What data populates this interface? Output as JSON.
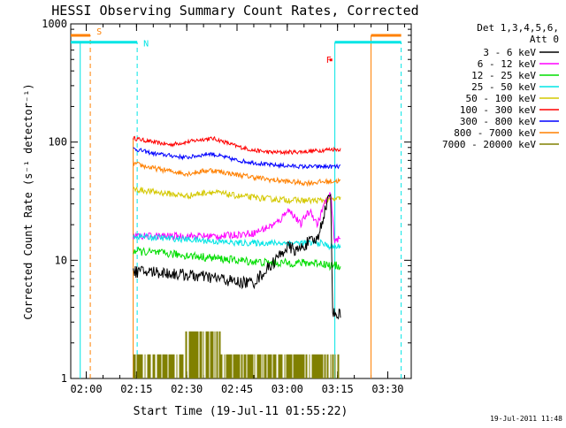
{
  "chart_data": {
    "type": "line",
    "title": "HESSI Observing Summary Count Rates, Corrected",
    "xlabel": "Start Time (19-Jul-11 01:55:22)",
    "ylabel": "Corrected Count Rate (s⁻¹ detector⁻¹)",
    "y_scale": "log",
    "ylim": [
      1,
      1000
    ],
    "xlim_minutes": [
      115.37,
      217.0
    ],
    "x_ticks": [
      {
        "label": "02:00",
        "min": 120
      },
      {
        "label": "02:15",
        "min": 135
      },
      {
        "label": "02:30",
        "min": 150
      },
      {
        "label": "02:45",
        "min": 165
      },
      {
        "label": "03:00",
        "min": 180
      },
      {
        "label": "03:15",
        "min": 195
      },
      {
        "label": "03:30",
        "min": 210
      }
    ],
    "y_ticks": [
      {
        "label": "1",
        "value": 1
      },
      {
        "label": "10",
        "value": 10
      },
      {
        "label": "100",
        "value": 100
      },
      {
        "label": "1000",
        "value": 1000
      }
    ],
    "legend": {
      "position": "right",
      "title_lines": [
        "Det 1,3,4,5,6,",
        "Att 0"
      ],
      "entries": [
        {
          "label": "3 - 6 keV",
          "color": "#000000"
        },
        {
          "label": "6 - 12 keV",
          "color": "#ff00ff"
        },
        {
          "label": "12 - 25 keV",
          "color": "#00dd00"
        },
        {
          "label": "25 - 50 keV",
          "color": "#00e5e5"
        },
        {
          "label": "50 - 100 keV",
          "color": "#d4c800"
        },
        {
          "label": "100 - 300 keV",
          "color": "#ff0000"
        },
        {
          "label": "300 - 800 keV",
          "color": "#0000ff"
        },
        {
          "label": "800 - 7000 keV",
          "color": "#ff8000"
        },
        {
          "label": "7000 - 20000 keV",
          "color": "#808000"
        }
      ]
    },
    "data_interval_minutes": [
      134.0,
      196.0
    ],
    "series": [
      {
        "name": "100 - 300 keV",
        "color": "#ff0000",
        "noise": 0.04,
        "x": [
          134,
          140,
          145,
          150,
          155,
          158,
          160,
          165,
          170,
          175,
          180,
          185,
          190,
          193,
          196
        ],
        "y": [
          108,
          100,
          95,
          100,
          106,
          107,
          103,
          92,
          85,
          82,
          82,
          83,
          85,
          87,
          87
        ]
      },
      {
        "name": "300 - 800 keV",
        "color": "#0000ff",
        "noise": 0.04,
        "x": [
          134,
          140,
          150,
          157,
          165,
          175,
          185,
          190,
          196
        ],
        "y": [
          88,
          80,
          74,
          80,
          70,
          64,
          62,
          62,
          62
        ]
      },
      {
        "name": "800 - 7000 keV",
        "color": "#ff8000",
        "noise": 0.05,
        "x": [
          134,
          140,
          150,
          157,
          165,
          175,
          185,
          190,
          196
        ],
        "y": [
          66,
          60,
          54,
          58,
          53,
          48,
          45,
          46,
          47
        ]
      },
      {
        "name": "50 - 100 keV",
        "color": "#d4c800",
        "noise": 0.06,
        "x": [
          134,
          140,
          150,
          157,
          165,
          175,
          185,
          190,
          196
        ],
        "y": [
          40,
          38,
          35,
          38,
          35,
          33,
          32,
          32,
          33
        ]
      },
      {
        "name": "6 - 12 keV",
        "color": "#ff00ff",
        "noise": 0.07,
        "x": [
          134,
          150,
          160,
          170,
          176,
          178,
          180,
          182,
          184,
          185.5,
          187,
          189,
          191,
          192,
          193,
          194,
          196
        ],
        "y": [
          16,
          16,
          16,
          17,
          20,
          22,
          27,
          24,
          20,
          24,
          26,
          20,
          30,
          33,
          36,
          15,
          15
        ]
      },
      {
        "name": "25 - 50 keV",
        "color": "#00e5e5",
        "noise": 0.06,
        "x": [
          134,
          150,
          165,
          175,
          185,
          190,
          193,
          196
        ],
        "y": [
          16,
          15,
          14,
          14,
          14,
          14,
          13,
          13
        ]
      },
      {
        "name": "12 - 25 keV",
        "color": "#00dd00",
        "noise": 0.08,
        "x": [
          134,
          150,
          165,
          175,
          185,
          190,
          193,
          196
        ],
        "y": [
          12,
          11,
          10,
          9.5,
          9.5,
          9.5,
          9,
          9
        ]
      },
      {
        "name": "3 - 6 keV",
        "color": "#000000",
        "noise": 0.12,
        "x": [
          134,
          140,
          150,
          160,
          165,
          170,
          175,
          180,
          183,
          186,
          189,
          191,
          192,
          193,
          193.5,
          194,
          196
        ],
        "y": [
          8,
          8,
          7.5,
          7,
          6.5,
          6.5,
          9,
          13,
          12,
          14,
          15,
          25,
          32,
          35,
          4,
          3.5,
          3.5
        ]
      },
      {
        "name": "7000 - 20000 keV",
        "color": "#808000",
        "noise": 0,
        "x": [
          134,
          149,
          149,
          160,
          160,
          196
        ],
        "y": [
          1.6,
          1.6,
          2.5,
          2.5,
          1.6,
          1.6
        ]
      }
    ],
    "annotations": [
      {
        "text": "S",
        "color": "#ff8000",
        "min": 121.2
      },
      {
        "text": "N",
        "color": "#00e5e5",
        "min": 135.2
      },
      {
        "text": "F",
        "color": "#ff0000",
        "min": 192.9
      }
    ],
    "flag_bars": [
      {
        "color": "#ff8000",
        "y": 800,
        "from_min": 115.37,
        "to_min": 121.2
      },
      {
        "color": "#ff8000",
        "y": 800,
        "from_min": 205.0,
        "to_min": 214.0
      },
      {
        "color": "#00e5e5",
        "y": 700,
        "from_min": 115.37,
        "to_min": 135.2
      },
      {
        "color": "#00e5e5",
        "y": 700,
        "from_min": 194.2,
        "to_min": 214.0
      }
    ],
    "vertical_lines": [
      {
        "color": "#00e5e5",
        "style": "solid",
        "min": 118.2,
        "from": 1,
        "to": 700
      },
      {
        "color": "#ff8000",
        "style": "dashed",
        "min": 121.2,
        "from": 1,
        "to": 800
      },
      {
        "color": "#00e5e5",
        "style": "dashed",
        "min": 135.2,
        "from": 1,
        "to": 700
      },
      {
        "color": "#ff8000",
        "style": "solid",
        "min": 134.0,
        "from": 1,
        "to": 108
      },
      {
        "color": "#00e5e5",
        "style": "solid",
        "min": 194.2,
        "from": 1,
        "to": 700
      },
      {
        "color": "#ff8000",
        "style": "solid",
        "min": 205.0,
        "from": 1,
        "to": 800
      },
      {
        "color": "#00e5e5",
        "style": "dashed",
        "min": 214.0,
        "from": 1,
        "to": 700
      }
    ]
  },
  "footer": {
    "date_stamp": "19-Jul-2011 11:48"
  }
}
